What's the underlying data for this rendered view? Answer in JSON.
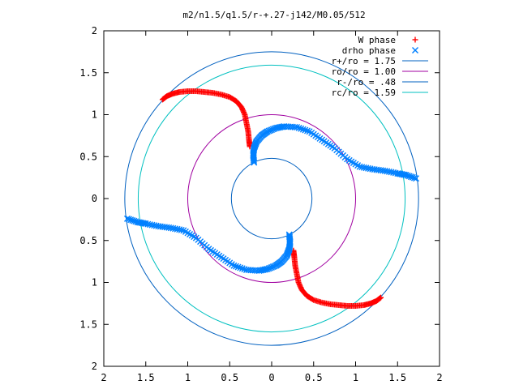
{
  "chart_data": {
    "type": "scatter",
    "title": "m2/n1.5/q1.5/r-+.27-j142/M0.05/512",
    "xlim": [
      -2,
      2
    ],
    "ylim": [
      -2,
      2
    ],
    "x_tick_labels": [
      "2",
      "1.5",
      "1",
      "0.5",
      "0",
      "0.5",
      "1",
      "1.5",
      "2"
    ],
    "y_tick_labels": [
      "2",
      "1.5",
      "1",
      "0.5",
      "0",
      "0.5",
      "1",
      "1.5",
      "2"
    ],
    "grid": false,
    "legend_position": "top-right",
    "series": [
      {
        "name": "W phase",
        "marker": "plus",
        "color": "#ff0000",
        "points": [
          [
            -1.3,
            1.18
          ],
          [
            -1.25,
            1.22
          ],
          [
            -1.18,
            1.25
          ],
          [
            -1.1,
            1.27
          ],
          [
            -1.0,
            1.28
          ],
          [
            -0.9,
            1.28
          ],
          [
            -0.8,
            1.27
          ],
          [
            -0.7,
            1.26
          ],
          [
            -0.6,
            1.24
          ],
          [
            -0.5,
            1.21
          ],
          [
            -0.42,
            1.16
          ],
          [
            -0.36,
            1.09
          ],
          [
            -0.32,
            1.0
          ],
          [
            -0.3,
            0.9
          ],
          [
            -0.28,
            0.8
          ],
          [
            -0.27,
            0.7
          ],
          [
            -0.26,
            0.62
          ],
          [
            1.3,
            -1.18
          ],
          [
            1.25,
            -1.22
          ],
          [
            1.18,
            -1.25
          ],
          [
            1.1,
            -1.27
          ],
          [
            1.0,
            -1.28
          ],
          [
            0.9,
            -1.28
          ],
          [
            0.8,
            -1.27
          ],
          [
            0.7,
            -1.26
          ],
          [
            0.6,
            -1.24
          ],
          [
            0.5,
            -1.21
          ],
          [
            0.42,
            -1.16
          ],
          [
            0.36,
            -1.09
          ],
          [
            0.32,
            -1.0
          ],
          [
            0.3,
            -0.9
          ],
          [
            0.28,
            -0.8
          ],
          [
            0.27,
            -0.7
          ],
          [
            0.26,
            -0.62
          ]
        ]
      },
      {
        "name": "drho phase",
        "marker": "cross",
        "color": "#0080ff",
        "points": [
          [
            -0.21,
            0.43
          ],
          [
            -0.22,
            0.52
          ],
          [
            -0.21,
            0.6
          ],
          [
            -0.18,
            0.68
          ],
          [
            -0.12,
            0.75
          ],
          [
            -0.05,
            0.8
          ],
          [
            0.05,
            0.84
          ],
          [
            0.15,
            0.86
          ],
          [
            0.3,
            0.85
          ],
          [
            0.45,
            0.8
          ],
          [
            0.6,
            0.7
          ],
          [
            0.75,
            0.6
          ],
          [
            0.9,
            0.47
          ],
          [
            1.05,
            0.38
          ],
          [
            1.2,
            0.35
          ],
          [
            1.35,
            0.33
          ],
          [
            1.5,
            0.3
          ],
          [
            1.6,
            0.28
          ],
          [
            1.72,
            0.24
          ],
          [
            0.21,
            -0.43
          ],
          [
            0.22,
            -0.52
          ],
          [
            0.21,
            -0.6
          ],
          [
            0.18,
            -0.68
          ],
          [
            0.12,
            -0.75
          ],
          [
            0.05,
            -0.8
          ],
          [
            -0.05,
            -0.84
          ],
          [
            -0.15,
            -0.86
          ],
          [
            -0.3,
            -0.85
          ],
          [
            -0.45,
            -0.8
          ],
          [
            -0.6,
            -0.7
          ],
          [
            -0.75,
            -0.6
          ],
          [
            -0.9,
            -0.47
          ],
          [
            -1.05,
            -0.38
          ],
          [
            -1.2,
            -0.35
          ],
          [
            -1.35,
            -0.33
          ],
          [
            -1.5,
            -0.3
          ],
          [
            -1.6,
            -0.28
          ],
          [
            -1.72,
            -0.24
          ]
        ]
      },
      {
        "name": "r+/ro = 1.75",
        "type": "circle",
        "radius": 1.75,
        "color": "#0060c0"
      },
      {
        "name": "ro/ro = 1.00",
        "type": "circle",
        "radius": 1.0,
        "color": "#a000a0"
      },
      {
        "name": "r-/ro = .48",
        "type": "circle",
        "radius": 0.48,
        "color": "#0060c0"
      },
      {
        "name": "rc/ro = 1.59",
        "type": "circle",
        "radius": 1.59,
        "color": "#00c0c0"
      }
    ]
  }
}
